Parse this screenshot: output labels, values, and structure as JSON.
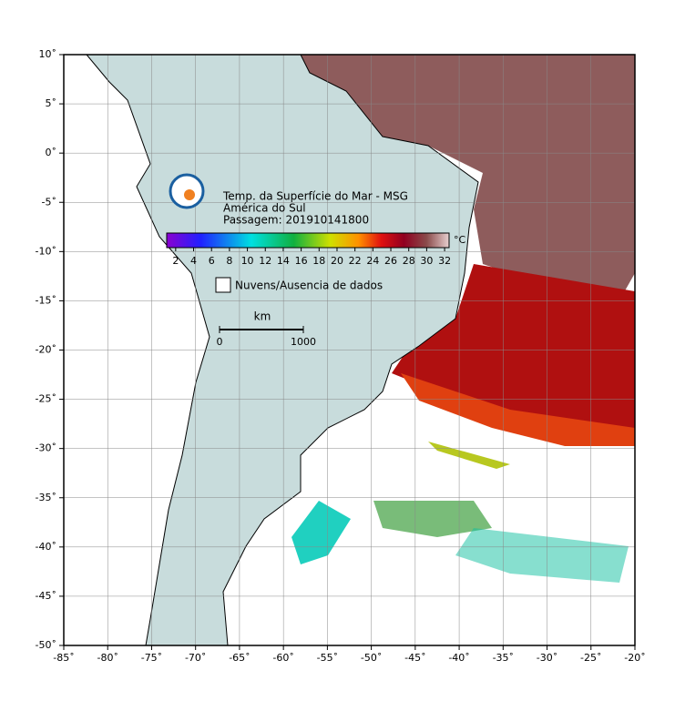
{
  "map": {
    "title_lines": [
      "Temp. da Superfície do Mar - MSG",
      "América do Sul",
      "Passagem: 201910141800"
    ],
    "colorbar": {
      "unit": "°C",
      "range": [
        1,
        32.5
      ],
      "ticks": [
        2,
        4,
        6,
        8,
        10,
        12,
        14,
        16,
        18,
        20,
        22,
        24,
        26,
        28,
        30,
        32
      ]
    },
    "legend": "Nuvens/Ausencia de dados",
    "scale_bar": {
      "unit": "km",
      "labels": [
        "0",
        "1000"
      ]
    },
    "xlim": [
      -85,
      -20
    ],
    "ylim": [
      -50,
      10
    ],
    "xticks": [
      {
        "value": -85,
        "label": "-85˚"
      },
      {
        "value": -80,
        "label": "-80˚"
      },
      {
        "value": -75,
        "label": "-75˚"
      },
      {
        "value": -70,
        "label": "-70˚"
      },
      {
        "value": -65,
        "label": "-65˚"
      },
      {
        "value": -60,
        "label": "-60˚"
      },
      {
        "value": -55,
        "label": "-55˚"
      },
      {
        "value": -50,
        "label": "-50˚"
      },
      {
        "value": -45,
        "label": "-45˚"
      },
      {
        "value": -40,
        "label": "-40˚"
      },
      {
        "value": -35,
        "label": "-35˚"
      },
      {
        "value": -30,
        "label": "-30˚"
      },
      {
        "value": -25,
        "label": "-25˚"
      },
      {
        "value": -20,
        "label": "-20˚"
      }
    ],
    "yticks": [
      {
        "value": 10,
        "label": "10˚"
      },
      {
        "value": 5,
        "label": "5˚"
      },
      {
        "value": 0,
        "label": "0˚"
      },
      {
        "value": -5,
        "label": "-5˚"
      },
      {
        "value": -10,
        "label": "-10˚"
      },
      {
        "value": -15,
        "label": "-15˚"
      },
      {
        "value": -20,
        "label": "-20˚"
      },
      {
        "value": -25,
        "label": "-25˚"
      },
      {
        "value": -30,
        "label": "-30˚"
      },
      {
        "value": -35,
        "label": "-35˚"
      },
      {
        "value": -40,
        "label": "-40˚"
      },
      {
        "value": -45,
        "label": "-45˚"
      },
      {
        "value": -50,
        "label": "-50˚"
      }
    ]
  }
}
